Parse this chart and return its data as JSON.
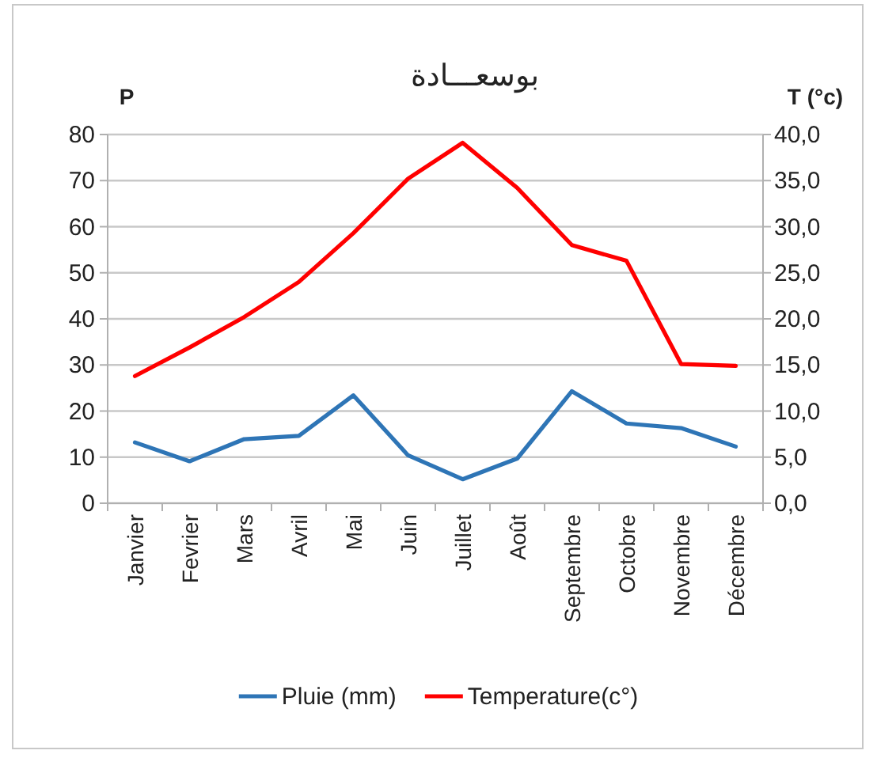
{
  "chart_data": {
    "type": "line",
    "title": "بوسعـــادة",
    "ylabel": "P",
    "y2label": "T (°c)",
    "categories": [
      "Janvier",
      "Fevrier",
      "Mars",
      "Avril",
      "Mai",
      "Juin",
      "Juillet",
      "Août",
      "Septembre",
      "Octobre",
      "Novembre",
      "Décembre"
    ],
    "series": [
      {
        "name": "Pluie (mm)",
        "color": "#2e75b6",
        "values": [
          13.2,
          9.1,
          13.9,
          14.6,
          23.4,
          10.4,
          5.2,
          9.7,
          24.3,
          17.3,
          16.3,
          12.3
        ]
      },
      {
        "name": "Temperature(c°)",
        "color": "#ff0000",
        "axis": "y2",
        "values": [
          13.8,
          16.9,
          20.2,
          24.0,
          29.3,
          35.2,
          39.1,
          34.2,
          28.0,
          26.3,
          15.1,
          14.9
        ]
      }
    ],
    "ylim": [
      0,
      80
    ],
    "yticks": [
      0,
      10,
      20,
      30,
      40,
      50,
      60,
      70,
      80
    ],
    "y2lim": [
      0,
      40
    ],
    "y2ticks": [
      {
        "value": 0,
        "label": "0,0"
      },
      {
        "value": 5,
        "label": "5,0"
      },
      {
        "value": 10,
        "label": "10,0"
      },
      {
        "value": 15,
        "label": "15,0"
      },
      {
        "value": 20,
        "label": "20,0"
      },
      {
        "value": 25,
        "label": "25,0"
      },
      {
        "value": 30,
        "label": "30,0"
      },
      {
        "value": 35,
        "label": "35,0"
      },
      {
        "value": 40,
        "label": "40,0"
      }
    ],
    "grid": "y",
    "legend": "bottom",
    "marker": "none",
    "line_style": "solid"
  }
}
